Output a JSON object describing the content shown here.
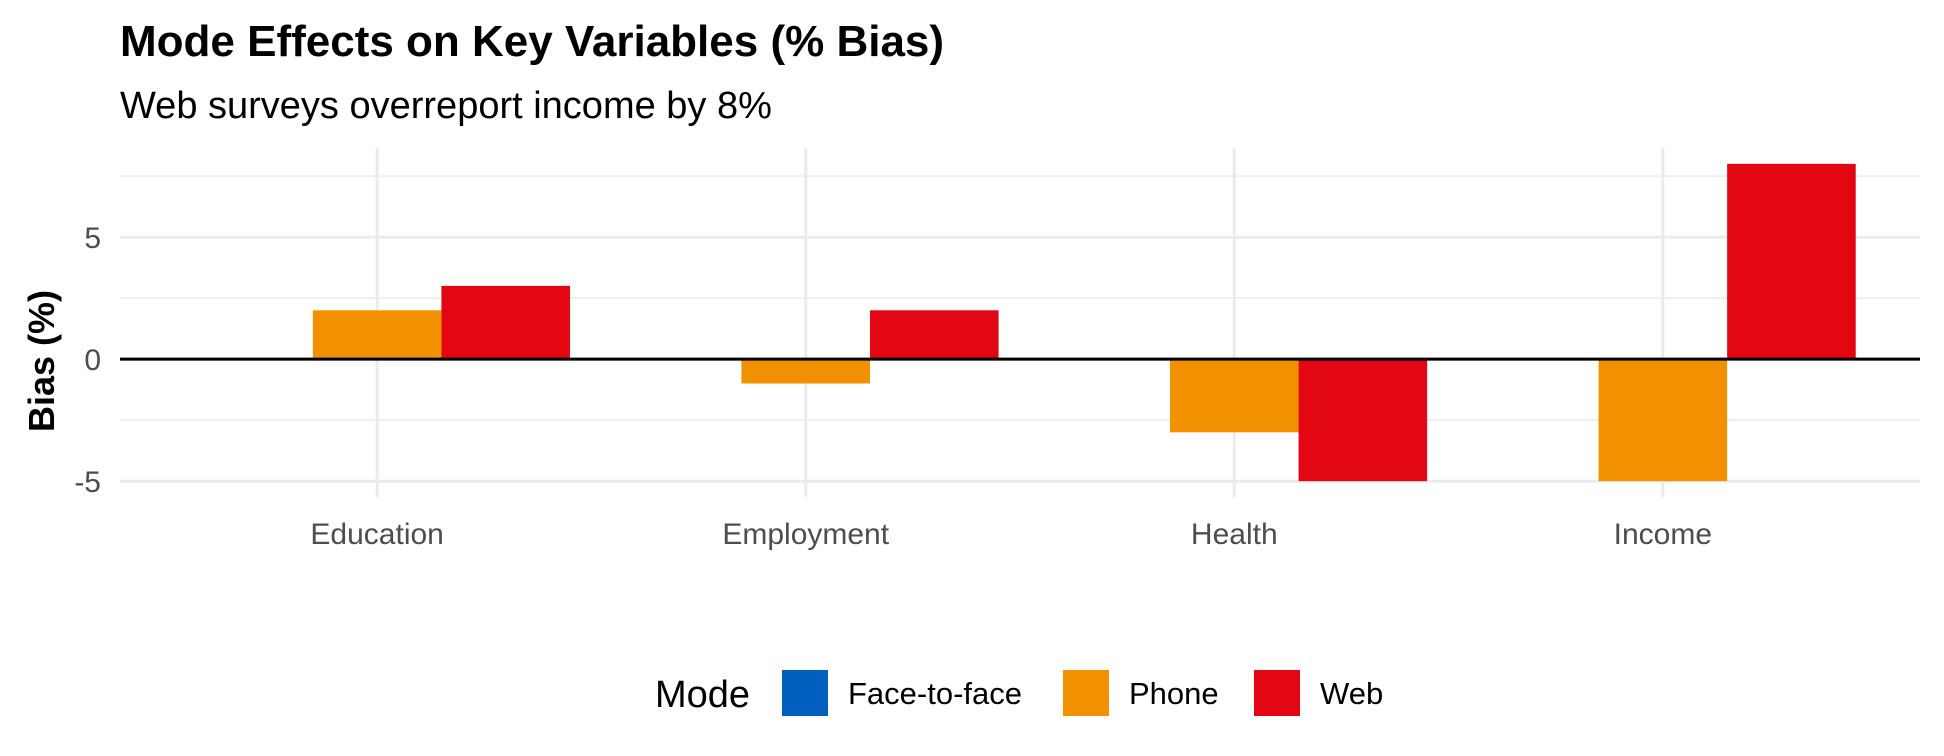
{
  "chart_data": {
    "type": "bar",
    "title": "Mode Effects on Key Variables (% Bias)",
    "subtitle": "Web surveys overreport income by 8%",
    "xlabel": "",
    "ylabel": "Bias (%)",
    "categories": [
      "Education",
      "Employment",
      "Health",
      "Income"
    ],
    "series": [
      {
        "name": "Face-to-face",
        "color": "#0060C0",
        "values": [
          0,
          0,
          0,
          0
        ]
      },
      {
        "name": "Phone",
        "color": "#F29100",
        "values": [
          2,
          -1,
          -3,
          -5
        ]
      },
      {
        "name": "Web",
        "color": "#E30613",
        "values": [
          3,
          2,
          -5,
          8
        ]
      }
    ],
    "ylim": [
      -5,
      8
    ],
    "yticks": [
      -5,
      0,
      5
    ],
    "ytick_labels": [
      "-5",
      "0",
      "5"
    ],
    "grid": true,
    "zero_line": true,
    "legend": {
      "title": "Mode",
      "position": "bottom"
    }
  }
}
